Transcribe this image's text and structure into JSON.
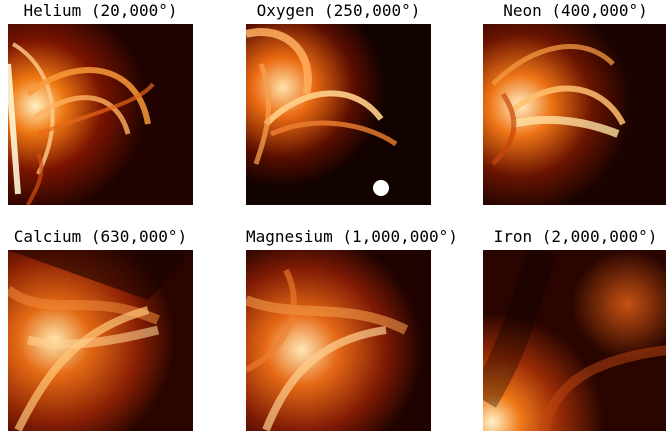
{
  "panels": [
    {
      "label": "Helium (20,000°)"
    },
    {
      "label": "Oxygen (250,000°)"
    },
    {
      "label": "Neon (400,000°)"
    },
    {
      "label": "Calcium (630,000°)"
    },
    {
      "label": "Magnesium (1,000,000°)"
    },
    {
      "label": "Iron (2,000,000°)"
    }
  ],
  "colors": {
    "background": "#ffffff",
    "dark": "#1a0300",
    "mid": "#8a1a00",
    "bright": "#e8660e",
    "hot": "#ffd08a"
  }
}
